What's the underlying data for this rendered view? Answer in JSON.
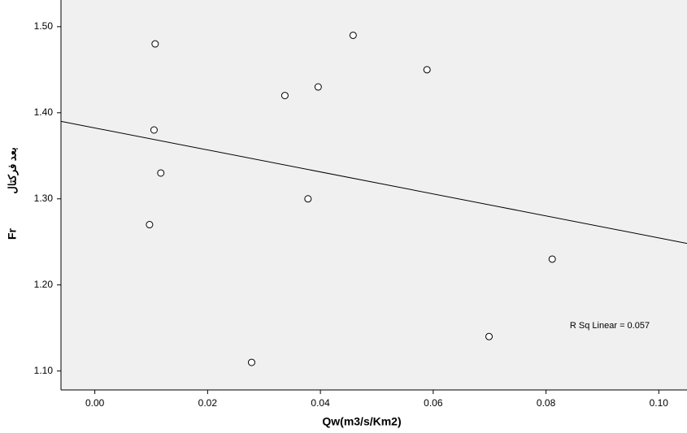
{
  "chart_data": {
    "type": "scatter",
    "xlabel": "Qw(m3/s/Km2)",
    "ylabel": "Fr",
    "ylabel_secondary": "بعد فرکتال",
    "annotation": "R Sq Linear = 0.057",
    "x": [
      0.0107,
      0.0458,
      0.0396,
      0.0589,
      0.0337,
      0.0105,
      0.0117,
      0.0378,
      0.0097,
      0.0811,
      0.0699,
      0.0278
    ],
    "values": [
      1.48,
      1.49,
      1.43,
      1.45,
      1.42,
      1.38,
      1.33,
      1.3,
      1.27,
      1.23,
      1.14,
      1.11
    ],
    "xlim": [
      -0.006,
      0.105
    ],
    "ylim": [
      1.078,
      1.531
    ],
    "xticks": [
      {
        "value": 0,
        "label": "0.00"
      },
      {
        "value": 0.02,
        "label": "0.02"
      },
      {
        "value": 0.04,
        "label": "0.04"
      },
      {
        "value": 0.06,
        "label": "0.06"
      },
      {
        "value": 0.08,
        "label": "0.08"
      },
      {
        "value": 0.1,
        "label": "0.10"
      }
    ],
    "yticks": [
      {
        "value": 1.1,
        "label": "1.10"
      },
      {
        "value": 1.2,
        "label": "1.20"
      },
      {
        "value": 1.3,
        "label": "1.30"
      },
      {
        "value": 1.4,
        "label": "1.40"
      },
      {
        "value": 1.5,
        "label": "1.50"
      }
    ],
    "fit_line": true,
    "color": "#000000"
  }
}
